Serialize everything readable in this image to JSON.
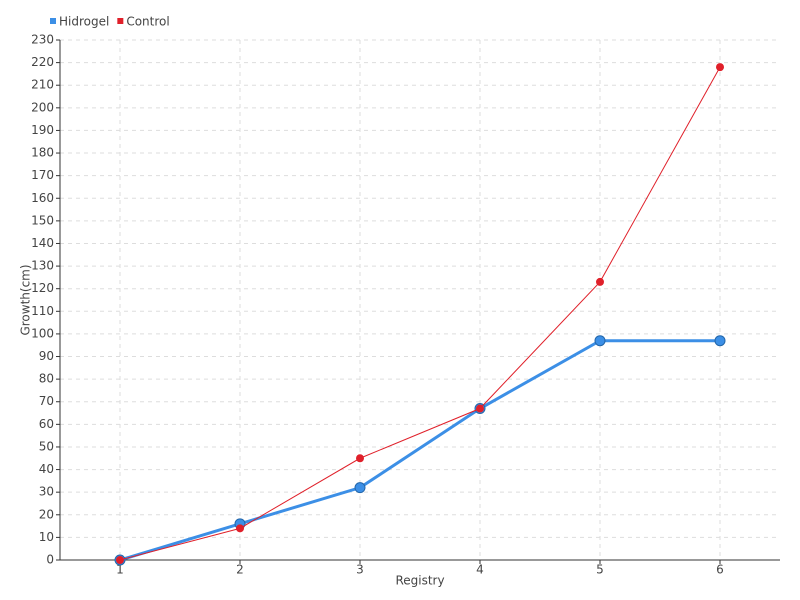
{
  "chart_data": {
    "type": "line",
    "x_label": "Registry",
    "y_label": "Growth(cm)",
    "x": [
      1,
      2,
      3,
      4,
      5,
      6
    ],
    "xlim": [
      0.5,
      6.5
    ],
    "xticks": [
      1,
      2,
      3,
      4,
      5,
      6
    ],
    "ylim": [
      0,
      230
    ],
    "yticks": [
      0,
      10,
      20,
      30,
      40,
      50,
      60,
      70,
      80,
      90,
      100,
      110,
      120,
      130,
      140,
      150,
      160,
      170,
      180,
      190,
      200,
      210,
      220,
      230
    ],
    "grid": true,
    "legend": "top-left",
    "series": [
      {
        "name": "Hidrogel",
        "color": "#3c8fe6",
        "values": [
          0,
          16,
          32,
          67,
          97,
          97
        ]
      },
      {
        "name": "Control",
        "color": "#e0202a",
        "values": [
          0,
          14,
          45,
          67,
          123,
          218
        ]
      }
    ]
  }
}
